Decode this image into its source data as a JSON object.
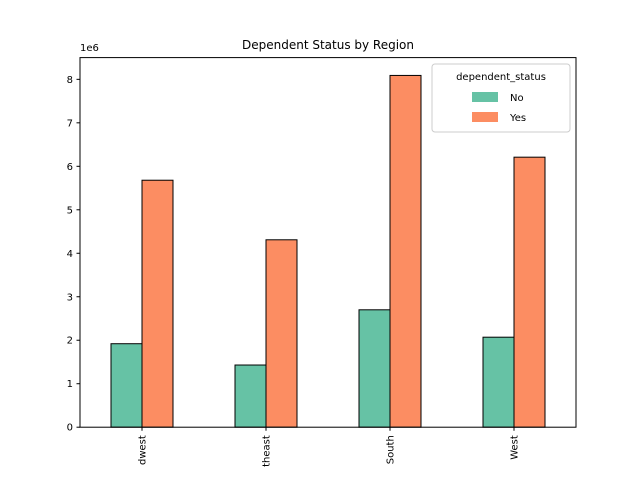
{
  "chart_data": {
    "type": "bar",
    "title": "Dependent Status by Region",
    "xlabel": "",
    "ylabel": "",
    "y_offset_label": "1e6",
    "categories": [
      "dwest",
      "theast",
      "South",
      "West"
    ],
    "series": [
      {
        "name": "No",
        "values": [
          1.92,
          1.43,
          2.7,
          2.07
        ]
      },
      {
        "name": "Yes",
        "values": [
          5.68,
          4.31,
          8.09,
          6.21
        ]
      }
    ],
    "ylim": [
      0,
      8.5
    ],
    "yticks": [
      0,
      1,
      2,
      3,
      4,
      5,
      6,
      7,
      8
    ],
    "legend": {
      "title": "dependent_status",
      "position": "top-right"
    },
    "grid": false,
    "colors": {
      "No": "#66c2a5",
      "Yes": "#fc8d62",
      "edge": "#000000"
    }
  }
}
